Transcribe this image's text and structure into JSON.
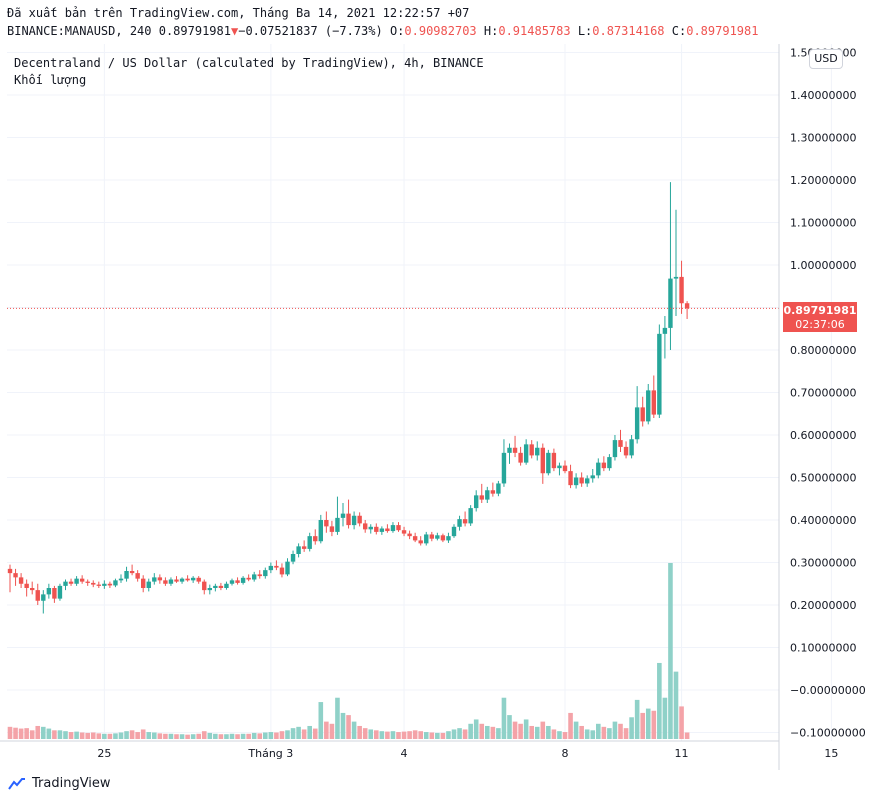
{
  "header": {
    "line1": "Đã xuất bản trên TradingView.com, Tháng Ba 14, 2021 12:22:57 +07",
    "symbol": "BINANCE:MANAUSD, 240",
    "last": "0.89791981",
    "change": "−0.07521837 (−7.73%)",
    "o_label": "O:",
    "o_value": "0.90982703",
    "h_label": "H:",
    "h_value": "0.91485783",
    "l_label": "L:",
    "l_value": "0.87314168",
    "c_label": "C:",
    "c_value": "0.89791981"
  },
  "legend": {
    "title": "Decentraland / US Dollar (calculated by TradingView), 4h, BINANCE",
    "volume": "Khối lượng"
  },
  "currency": "USD",
  "price_tag": {
    "price": "0.89791981",
    "countdown": "02:37:06"
  },
  "footer": {
    "brand": "TradingView"
  },
  "colors": {
    "up": "#26a69a",
    "down": "#ef5350",
    "vol_up": "#8fd1c8",
    "vol_down": "#f4a3a8"
  },
  "chart_data": {
    "type": "candlestick",
    "y_ticks": [
      "1.50000000",
      "1.40000000",
      "1.30000000",
      "1.20000000",
      "1.10000000",
      "1.00000000",
      "0.90000000",
      "0.80000000",
      "0.70000000",
      "0.60000000",
      "0.50000000",
      "0.40000000",
      "0.30000000",
      "0.20000000",
      "0.10000000",
      "−0.00000000",
      "−0.10000000"
    ],
    "y_tick_values": [
      1.5,
      1.4,
      1.3,
      1.2,
      1.1,
      1.0,
      0.9,
      0.8,
      0.7,
      0.6,
      0.5,
      0.4,
      0.3,
      0.2,
      0.1,
      0.0,
      -0.1
    ],
    "ylim": [
      -0.12,
      1.52
    ],
    "x_ticks": [
      "25",
      "Tháng 3",
      "4",
      "8",
      "11",
      "15"
    ],
    "x_tick_index": [
      17,
      47,
      71,
      100,
      121,
      148
    ],
    "last_price": 0.8979,
    "candles": [
      {
        "o": 0.285,
        "h": 0.295,
        "l": 0.23,
        "c": 0.275,
        "v": 0.028
      },
      {
        "o": 0.275,
        "h": 0.285,
        "l": 0.245,
        "c": 0.265,
        "v": 0.026
      },
      {
        "o": 0.265,
        "h": 0.275,
        "l": 0.24,
        "c": 0.25,
        "v": 0.024
      },
      {
        "o": 0.25,
        "h": 0.26,
        "l": 0.22,
        "c": 0.24,
        "v": 0.025
      },
      {
        "o": 0.24,
        "h": 0.255,
        "l": 0.225,
        "c": 0.235,
        "v": 0.02
      },
      {
        "o": 0.235,
        "h": 0.25,
        "l": 0.2,
        "c": 0.21,
        "v": 0.03
      },
      {
        "o": 0.21,
        "h": 0.235,
        "l": 0.18,
        "c": 0.225,
        "v": 0.028
      },
      {
        "o": 0.225,
        "h": 0.25,
        "l": 0.215,
        "c": 0.24,
        "v": 0.024
      },
      {
        "o": 0.24,
        "h": 0.245,
        "l": 0.205,
        "c": 0.215,
        "v": 0.02
      },
      {
        "o": 0.215,
        "h": 0.25,
        "l": 0.21,
        "c": 0.245,
        "v": 0.02
      },
      {
        "o": 0.245,
        "h": 0.26,
        "l": 0.235,
        "c": 0.255,
        "v": 0.018
      },
      {
        "o": 0.255,
        "h": 0.262,
        "l": 0.245,
        "c": 0.25,
        "v": 0.016
      },
      {
        "o": 0.25,
        "h": 0.268,
        "l": 0.245,
        "c": 0.262,
        "v": 0.017
      },
      {
        "o": 0.262,
        "h": 0.27,
        "l": 0.25,
        "c": 0.255,
        "v": 0.015
      },
      {
        "o": 0.255,
        "h": 0.26,
        "l": 0.245,
        "c": 0.252,
        "v": 0.014
      },
      {
        "o": 0.252,
        "h": 0.258,
        "l": 0.242,
        "c": 0.248,
        "v": 0.015
      },
      {
        "o": 0.248,
        "h": 0.255,
        "l": 0.24,
        "c": 0.245,
        "v": 0.013
      },
      {
        "o": 0.245,
        "h": 0.258,
        "l": 0.238,
        "c": 0.25,
        "v": 0.012
      },
      {
        "o": 0.25,
        "h": 0.255,
        "l": 0.24,
        "c": 0.246,
        "v": 0.012
      },
      {
        "o": 0.246,
        "h": 0.262,
        "l": 0.242,
        "c": 0.258,
        "v": 0.013
      },
      {
        "o": 0.258,
        "h": 0.272,
        "l": 0.252,
        "c": 0.262,
        "v": 0.015
      },
      {
        "o": 0.262,
        "h": 0.29,
        "l": 0.255,
        "c": 0.28,
        "v": 0.018
      },
      {
        "o": 0.28,
        "h": 0.295,
        "l": 0.27,
        "c": 0.275,
        "v": 0.02
      },
      {
        "o": 0.275,
        "h": 0.282,
        "l": 0.255,
        "c": 0.262,
        "v": 0.016
      },
      {
        "o": 0.262,
        "h": 0.27,
        "l": 0.23,
        "c": 0.24,
        "v": 0.022
      },
      {
        "o": 0.24,
        "h": 0.262,
        "l": 0.232,
        "c": 0.255,
        "v": 0.016
      },
      {
        "o": 0.255,
        "h": 0.275,
        "l": 0.248,
        "c": 0.265,
        "v": 0.015
      },
      {
        "o": 0.265,
        "h": 0.272,
        "l": 0.25,
        "c": 0.258,
        "v": 0.013
      },
      {
        "o": 0.258,
        "h": 0.265,
        "l": 0.245,
        "c": 0.25,
        "v": 0.012
      },
      {
        "o": 0.25,
        "h": 0.265,
        "l": 0.245,
        "c": 0.26,
        "v": 0.012
      },
      {
        "o": 0.26,
        "h": 0.268,
        "l": 0.252,
        "c": 0.255,
        "v": 0.011
      },
      {
        "o": 0.255,
        "h": 0.265,
        "l": 0.25,
        "c": 0.262,
        "v": 0.011
      },
      {
        "o": 0.262,
        "h": 0.27,
        "l": 0.255,
        "c": 0.258,
        "v": 0.01
      },
      {
        "o": 0.258,
        "h": 0.268,
        "l": 0.252,
        "c": 0.264,
        "v": 0.011
      },
      {
        "o": 0.264,
        "h": 0.268,
        "l": 0.25,
        "c": 0.255,
        "v": 0.012
      },
      {
        "o": 0.255,
        "h": 0.26,
        "l": 0.225,
        "c": 0.235,
        "v": 0.018
      },
      {
        "o": 0.235,
        "h": 0.248,
        "l": 0.225,
        "c": 0.24,
        "v": 0.014
      },
      {
        "o": 0.24,
        "h": 0.25,
        "l": 0.232,
        "c": 0.245,
        "v": 0.012
      },
      {
        "o": 0.245,
        "h": 0.252,
        "l": 0.235,
        "c": 0.24,
        "v": 0.011
      },
      {
        "o": 0.24,
        "h": 0.255,
        "l": 0.236,
        "c": 0.25,
        "v": 0.011
      },
      {
        "o": 0.25,
        "h": 0.262,
        "l": 0.246,
        "c": 0.258,
        "v": 0.012
      },
      {
        "o": 0.258,
        "h": 0.265,
        "l": 0.248,
        "c": 0.252,
        "v": 0.011
      },
      {
        "o": 0.252,
        "h": 0.268,
        "l": 0.248,
        "c": 0.264,
        "v": 0.012
      },
      {
        "o": 0.264,
        "h": 0.272,
        "l": 0.256,
        "c": 0.26,
        "v": 0.012
      },
      {
        "o": 0.26,
        "h": 0.278,
        "l": 0.255,
        "c": 0.272,
        "v": 0.014
      },
      {
        "o": 0.272,
        "h": 0.282,
        "l": 0.262,
        "c": 0.268,
        "v": 0.013
      },
      {
        "o": 0.268,
        "h": 0.288,
        "l": 0.262,
        "c": 0.282,
        "v": 0.015
      },
      {
        "o": 0.282,
        "h": 0.3,
        "l": 0.275,
        "c": 0.292,
        "v": 0.016
      },
      {
        "o": 0.292,
        "h": 0.305,
        "l": 0.282,
        "c": 0.288,
        "v": 0.015
      },
      {
        "o": 0.288,
        "h": 0.298,
        "l": 0.265,
        "c": 0.272,
        "v": 0.018
      },
      {
        "o": 0.272,
        "h": 0.31,
        "l": 0.268,
        "c": 0.302,
        "v": 0.02
      },
      {
        "o": 0.302,
        "h": 0.328,
        "l": 0.296,
        "c": 0.32,
        "v": 0.025
      },
      {
        "o": 0.32,
        "h": 0.345,
        "l": 0.312,
        "c": 0.338,
        "v": 0.028
      },
      {
        "o": 0.338,
        "h": 0.352,
        "l": 0.325,
        "c": 0.332,
        "v": 0.022
      },
      {
        "o": 0.332,
        "h": 0.37,
        "l": 0.326,
        "c": 0.362,
        "v": 0.03
      },
      {
        "o": 0.362,
        "h": 0.378,
        "l": 0.342,
        "c": 0.35,
        "v": 0.024
      },
      {
        "o": 0.35,
        "h": 0.412,
        "l": 0.345,
        "c": 0.4,
        "v": 0.085
      },
      {
        "o": 0.4,
        "h": 0.42,
        "l": 0.37,
        "c": 0.385,
        "v": 0.04
      },
      {
        "o": 0.385,
        "h": 0.398,
        "l": 0.362,
        "c": 0.372,
        "v": 0.035
      },
      {
        "o": 0.372,
        "h": 0.455,
        "l": 0.365,
        "c": 0.405,
        "v": 0.095
      },
      {
        "o": 0.405,
        "h": 0.44,
        "l": 0.385,
        "c": 0.415,
        "v": 0.06
      },
      {
        "o": 0.415,
        "h": 0.448,
        "l": 0.38,
        "c": 0.388,
        "v": 0.055
      },
      {
        "o": 0.388,
        "h": 0.42,
        "l": 0.378,
        "c": 0.41,
        "v": 0.04
      },
      {
        "o": 0.41,
        "h": 0.418,
        "l": 0.385,
        "c": 0.392,
        "v": 0.03
      },
      {
        "o": 0.392,
        "h": 0.4,
        "l": 0.37,
        "c": 0.378,
        "v": 0.025
      },
      {
        "o": 0.378,
        "h": 0.39,
        "l": 0.368,
        "c": 0.384,
        "v": 0.022
      },
      {
        "o": 0.384,
        "h": 0.392,
        "l": 0.366,
        "c": 0.372,
        "v": 0.02
      },
      {
        "o": 0.372,
        "h": 0.385,
        "l": 0.365,
        "c": 0.38,
        "v": 0.018
      },
      {
        "o": 0.38,
        "h": 0.39,
        "l": 0.37,
        "c": 0.374,
        "v": 0.017
      },
      {
        "o": 0.374,
        "h": 0.395,
        "l": 0.37,
        "c": 0.388,
        "v": 0.018
      },
      {
        "o": 0.388,
        "h": 0.395,
        "l": 0.372,
        "c": 0.376,
        "v": 0.016
      },
      {
        "o": 0.376,
        "h": 0.384,
        "l": 0.362,
        "c": 0.368,
        "v": 0.017
      },
      {
        "o": 0.368,
        "h": 0.375,
        "l": 0.355,
        "c": 0.362,
        "v": 0.018
      },
      {
        "o": 0.362,
        "h": 0.37,
        "l": 0.348,
        "c": 0.352,
        "v": 0.02
      },
      {
        "o": 0.352,
        "h": 0.362,
        "l": 0.34,
        "c": 0.345,
        "v": 0.018
      },
      {
        "o": 0.345,
        "h": 0.372,
        "l": 0.34,
        "c": 0.366,
        "v": 0.016
      },
      {
        "o": 0.366,
        "h": 0.372,
        "l": 0.35,
        "c": 0.356,
        "v": 0.015
      },
      {
        "o": 0.356,
        "h": 0.37,
        "l": 0.352,
        "c": 0.364,
        "v": 0.014
      },
      {
        "o": 0.364,
        "h": 0.368,
        "l": 0.348,
        "c": 0.352,
        "v": 0.014
      },
      {
        "o": 0.352,
        "h": 0.37,
        "l": 0.346,
        "c": 0.362,
        "v": 0.018
      },
      {
        "o": 0.362,
        "h": 0.39,
        "l": 0.358,
        "c": 0.384,
        "v": 0.022
      },
      {
        "o": 0.384,
        "h": 0.41,
        "l": 0.375,
        "c": 0.402,
        "v": 0.025
      },
      {
        "o": 0.402,
        "h": 0.42,
        "l": 0.385,
        "c": 0.392,
        "v": 0.022
      },
      {
        "o": 0.392,
        "h": 0.435,
        "l": 0.386,
        "c": 0.428,
        "v": 0.035
      },
      {
        "o": 0.428,
        "h": 0.47,
        "l": 0.42,
        "c": 0.458,
        "v": 0.045
      },
      {
        "o": 0.458,
        "h": 0.485,
        "l": 0.44,
        "c": 0.448,
        "v": 0.035
      },
      {
        "o": 0.448,
        "h": 0.478,
        "l": 0.44,
        "c": 0.47,
        "v": 0.03
      },
      {
        "o": 0.47,
        "h": 0.488,
        "l": 0.455,
        "c": 0.462,
        "v": 0.028
      },
      {
        "o": 0.462,
        "h": 0.492,
        "l": 0.456,
        "c": 0.486,
        "v": 0.025
      },
      {
        "o": 0.486,
        "h": 0.59,
        "l": 0.478,
        "c": 0.558,
        "v": 0.095
      },
      {
        "o": 0.558,
        "h": 0.58,
        "l": 0.532,
        "c": 0.57,
        "v": 0.055
      },
      {
        "o": 0.57,
        "h": 0.598,
        "l": 0.548,
        "c": 0.558,
        "v": 0.04
      },
      {
        "o": 0.558,
        "h": 0.572,
        "l": 0.528,
        "c": 0.535,
        "v": 0.035
      },
      {
        "o": 0.535,
        "h": 0.59,
        "l": 0.53,
        "c": 0.578,
        "v": 0.045
      },
      {
        "o": 0.578,
        "h": 0.588,
        "l": 0.545,
        "c": 0.552,
        "v": 0.03
      },
      {
        "o": 0.552,
        "h": 0.585,
        "l": 0.54,
        "c": 0.57,
        "v": 0.028
      },
      {
        "o": 0.57,
        "h": 0.58,
        "l": 0.485,
        "c": 0.51,
        "v": 0.04
      },
      {
        "o": 0.51,
        "h": 0.565,
        "l": 0.505,
        "c": 0.558,
        "v": 0.03
      },
      {
        "o": 0.558,
        "h": 0.568,
        "l": 0.515,
        "c": 0.522,
        "v": 0.022
      },
      {
        "o": 0.522,
        "h": 0.535,
        "l": 0.505,
        "c": 0.528,
        "v": 0.018
      },
      {
        "o": 0.528,
        "h": 0.54,
        "l": 0.51,
        "c": 0.515,
        "v": 0.016
      },
      {
        "o": 0.515,
        "h": 0.53,
        "l": 0.475,
        "c": 0.482,
        "v": 0.06
      },
      {
        "o": 0.482,
        "h": 0.51,
        "l": 0.474,
        "c": 0.5,
        "v": 0.04
      },
      {
        "o": 0.5,
        "h": 0.512,
        "l": 0.478,
        "c": 0.486,
        "v": 0.03
      },
      {
        "o": 0.486,
        "h": 0.505,
        "l": 0.478,
        "c": 0.498,
        "v": 0.022
      },
      {
        "o": 0.498,
        "h": 0.52,
        "l": 0.488,
        "c": 0.505,
        "v": 0.02
      },
      {
        "o": 0.505,
        "h": 0.545,
        "l": 0.498,
        "c": 0.535,
        "v": 0.035
      },
      {
        "o": 0.535,
        "h": 0.55,
        "l": 0.515,
        "c": 0.522,
        "v": 0.028
      },
      {
        "o": 0.522,
        "h": 0.555,
        "l": 0.516,
        "c": 0.548,
        "v": 0.025
      },
      {
        "o": 0.548,
        "h": 0.6,
        "l": 0.54,
        "c": 0.588,
        "v": 0.04
      },
      {
        "o": 0.588,
        "h": 0.612,
        "l": 0.56,
        "c": 0.572,
        "v": 0.035
      },
      {
        "o": 0.572,
        "h": 0.585,
        "l": 0.545,
        "c": 0.552,
        "v": 0.025
      },
      {
        "o": 0.552,
        "h": 0.6,
        "l": 0.545,
        "c": 0.59,
        "v": 0.05
      },
      {
        "o": 0.59,
        "h": 0.715,
        "l": 0.58,
        "c": 0.665,
        "v": 0.09
      },
      {
        "o": 0.665,
        "h": 0.69,
        "l": 0.62,
        "c": 0.632,
        "v": 0.06
      },
      {
        "o": 0.632,
        "h": 0.72,
        "l": 0.625,
        "c": 0.705,
        "v": 0.07
      },
      {
        "o": 0.705,
        "h": 0.74,
        "l": 0.64,
        "c": 0.648,
        "v": 0.065
      },
      {
        "o": 0.648,
        "h": 0.86,
        "l": 0.64,
        "c": 0.838,
        "v": 0.175
      },
      {
        "o": 0.838,
        "h": 0.88,
        "l": 0.78,
        "c": 0.852,
        "v": 0.095
      },
      {
        "o": 0.852,
        "h": 1.195,
        "l": 0.8,
        "c": 0.968,
        "v": 0.405
      },
      {
        "o": 0.968,
        "h": 1.13,
        "l": 0.88,
        "c": 0.972,
        "v": 0.155
      },
      {
        "o": 0.972,
        "h": 1.01,
        "l": 0.885,
        "c": 0.91,
        "v": 0.075
      },
      {
        "o": 0.91,
        "h": 0.915,
        "l": 0.873,
        "c": 0.898,
        "v": 0.015
      }
    ]
  }
}
